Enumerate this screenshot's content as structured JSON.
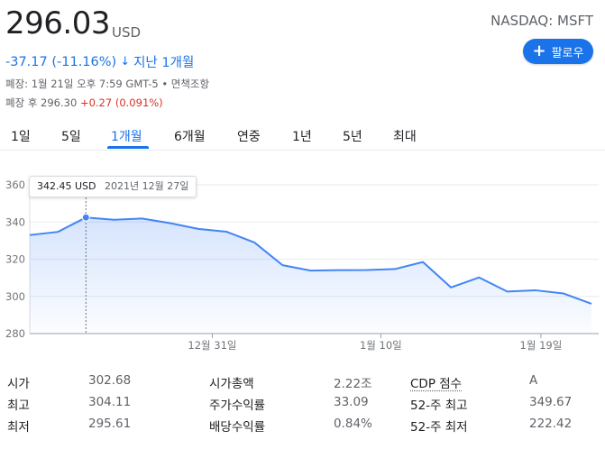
{
  "header": {
    "price": "296.03",
    "currency": "USD",
    "ticker": "NASDAQ: MSFT",
    "follow_label": "팔로우",
    "change": "-37.17 (-11.16%)",
    "change_period": "지난 1개월",
    "closed_line": "폐장: 1월 21일 오후 7:59 GMT-5 • 면책조항",
    "after_hours_prefix": "폐장 후 296.30",
    "after_hours_change": "+0.27 (0.091%)"
  },
  "colors": {
    "accent": "#1a73e8",
    "negative": "#1a73e8",
    "positive": "#d93025",
    "line": "#4285f4",
    "fill": "#e8f0fe"
  },
  "tabs": [
    {
      "label": "1일",
      "active": false
    },
    {
      "label": "5일",
      "active": false
    },
    {
      "label": "1개월",
      "active": true
    },
    {
      "label": "6개월",
      "active": false
    },
    {
      "label": "연중",
      "active": false
    },
    {
      "label": "1년",
      "active": false
    },
    {
      "label": "5년",
      "active": false
    },
    {
      "label": "최대",
      "active": false
    }
  ],
  "tooltip": {
    "value": "342.45 USD",
    "date": "2021년 12월 27일"
  },
  "chart_data": {
    "type": "area",
    "xlabel": "",
    "ylabel": "",
    "ylim": [
      280,
      360
    ],
    "yticks": [
      280,
      300,
      320,
      340,
      360
    ],
    "x_tick_labels": [
      "12월 31일",
      "1월 10일",
      "1월 19일"
    ],
    "x_tick_index": [
      6.5,
      12.5,
      18.2
    ],
    "grid": true,
    "highlight_index": 2,
    "series": [
      {
        "values": [
          333,
          334.7,
          342.45,
          341.2,
          341.9,
          339.4,
          336.3,
          334.8,
          329,
          316.8,
          313.9,
          314.1,
          314.2,
          314.7,
          318.5,
          304.8,
          310.2,
          302.6,
          303.3,
          301.6,
          296.03
        ]
      }
    ]
  },
  "stats": {
    "rows": [
      [
        {
          "label": "시가",
          "value": "302.68"
        },
        {
          "label": "시가총액",
          "value": "2.22조"
        },
        {
          "label": "CDP 점수",
          "value": "A"
        }
      ],
      [
        {
          "label": "최고",
          "value": "304.11"
        },
        {
          "label": "주가수익률",
          "value": "33.09"
        },
        {
          "label": "52-주 최고",
          "value": "349.67"
        }
      ],
      [
        {
          "label": "최저",
          "value": "295.61"
        },
        {
          "label": "배당수익률",
          "value": "0.84%"
        },
        {
          "label": "52-주 최저",
          "value": "222.42"
        }
      ]
    ]
  }
}
